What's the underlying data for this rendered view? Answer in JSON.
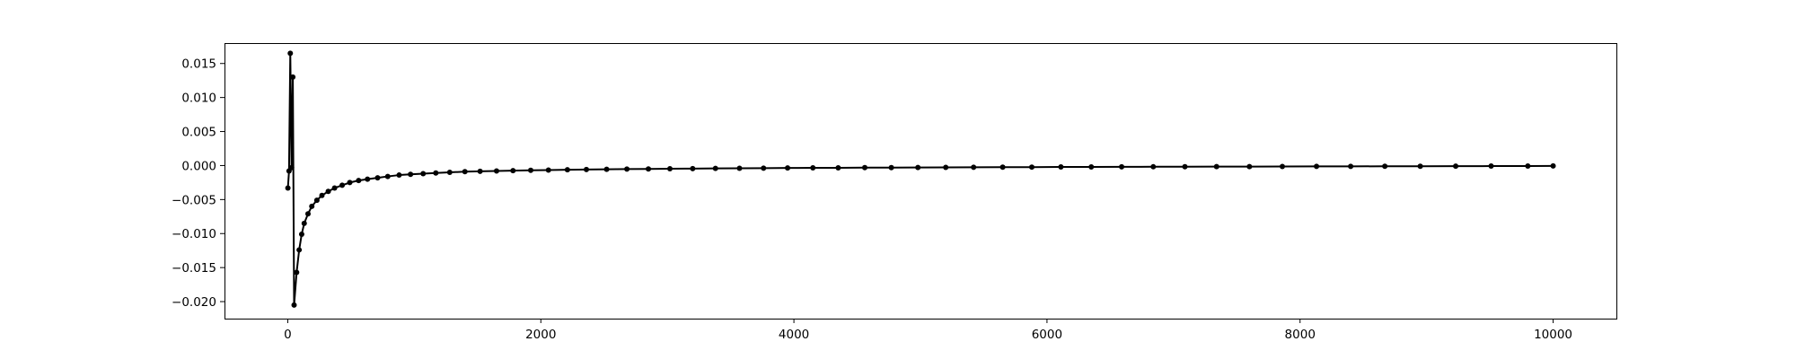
{
  "chart_data": {
    "type": "line",
    "title": "",
    "xlabel": "",
    "ylabel": "",
    "xlim": [
      -500,
      10500
    ],
    "ylim": [
      -0.0225,
      0.018
    ],
    "grid": false,
    "legend": "none",
    "xticks": [
      0,
      2000,
      4000,
      6000,
      8000,
      10000
    ],
    "xtick_labels": [
      "0",
      "2000",
      "4000",
      "6000",
      "8000",
      "10000"
    ],
    "yticks": [
      -0.02,
      -0.015,
      -0.01,
      -0.005,
      0.0,
      0.005,
      0.01,
      0.015
    ],
    "ytick_labels": [
      "−0.020",
      "−0.015",
      "−0.010",
      "−0.005",
      "0.000",
      "0.005",
      "0.010",
      "0.015"
    ],
    "series": [
      {
        "color": "#000000",
        "marker": "circle",
        "x": [
          1,
          10,
          20,
          30,
          40,
          50,
          70,
          90,
          110,
          130,
          160,
          190,
          230,
          270,
          320,
          370,
          430,
          490,
          560,
          630,
          710,
          790,
          880,
          970,
          1070,
          1170,
          1280,
          1400,
          1520,
          1650,
          1780,
          1920,
          2060,
          2210,
          2360,
          2520,
          2680,
          2850,
          3020,
          3200,
          3380,
          3570,
          3760,
          3950,
          4150,
          4350,
          4560,
          4770,
          4980,
          5200,
          5420,
          5650,
          5880,
          6110,
          6350,
          6590,
          6840,
          7090,
          7340,
          7600,
          7860,
          8130,
          8400,
          8670,
          8950,
          9230,
          9510,
          9800,
          10000
        ],
        "y": [
          -0.0033,
          -0.0008,
          0.0165,
          -0.0003,
          0.013,
          -0.0205,
          -0.0157,
          -0.0124,
          -0.0101,
          -0.0085,
          -0.0071,
          -0.006,
          -0.0051,
          -0.0044,
          -0.0038,
          -0.0033,
          -0.0029,
          -0.0025,
          -0.0022,
          -0.002,
          -0.0018,
          -0.0016,
          -0.0014,
          -0.0013,
          -0.0012,
          -0.0011,
          -0.001,
          -0.0009,
          -0.00085,
          -0.0008,
          -0.00075,
          -0.0007,
          -0.00066,
          -0.00062,
          -0.00058,
          -0.00055,
          -0.00052,
          -0.0005,
          -0.00047,
          -0.00045,
          -0.00042,
          -0.0004,
          -0.00038,
          -0.00036,
          -0.00034,
          -0.00033,
          -0.00031,
          -0.0003,
          -0.00028,
          -0.00027,
          -0.00025,
          -0.00024,
          -0.00023,
          -0.00021,
          -0.0002,
          -0.00019,
          -0.00018,
          -0.00017,
          -0.00016,
          -0.00015,
          -0.00014,
          -0.00013,
          -0.00012,
          -0.00011,
          -0.0001,
          -9e-05,
          -8e-05,
          -7e-05,
          -6e-05
        ]
      }
    ]
  }
}
